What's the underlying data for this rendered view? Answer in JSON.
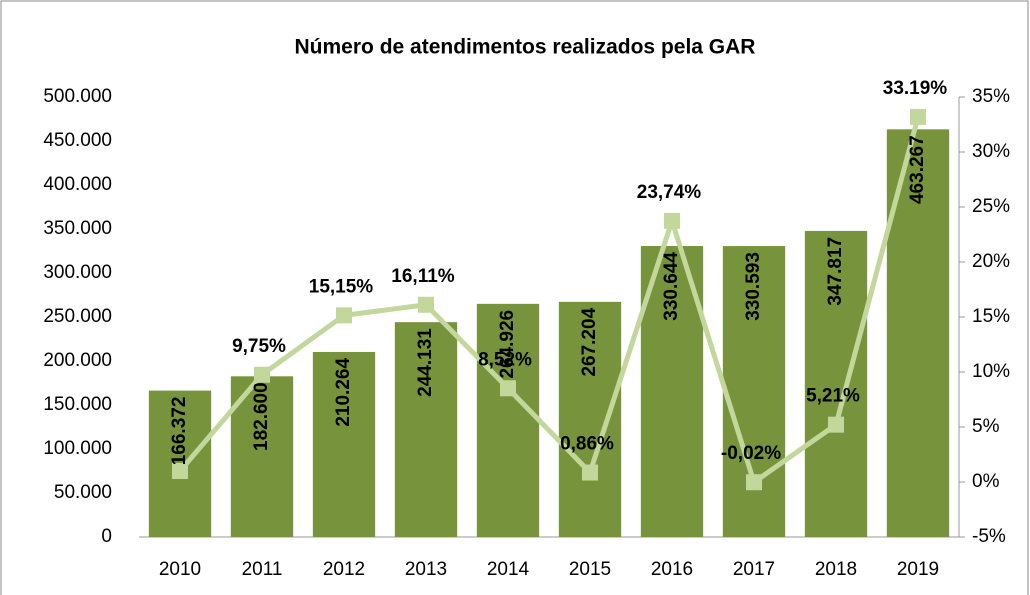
{
  "chart_data": {
    "type": "bar",
    "title": "Número de atendimentos realizados pela GAR",
    "categories": [
      "2010",
      "2011",
      "2012",
      "2013",
      "2014",
      "2015",
      "2016",
      "2017",
      "2018",
      "2019"
    ],
    "series": [
      {
        "type": "bar",
        "color": "#77933c",
        "values": [
          166372,
          182600,
          210264,
          244131,
          264926,
          267204,
          330644,
          330593,
          347817,
          463267
        ],
        "value_labels": [
          "166.372",
          "182.600",
          "210.264",
          "244.131",
          "264.926",
          "267.204",
          "330.644",
          "330.593",
          "347.817",
          "463.267"
        ]
      },
      {
        "type": "line",
        "axis": "y2",
        "color": "#c3d69b",
        "values": [
          1,
          9.75,
          15.15,
          16.11,
          8.52,
          0.86,
          23.74,
          -0.02,
          5.21,
          33.19
        ],
        "value_labels": [
          null,
          "9,75%",
          "15,15%",
          "16,11%",
          "8,52%",
          "0,86%",
          "23,74%",
          "-0,02%",
          "5,21%",
          "33.19%"
        ]
      }
    ],
    "ylim": [
      0,
      500000
    ],
    "yticks": [
      0,
      {
        "value": 50000,
        "label": "50.000"
      },
      {
        "value": 100000,
        "label": "100.000"
      },
      {
        "value": 150000,
        "label": "150.000"
      },
      {
        "value": 200000,
        "label": "200.000"
      },
      {
        "value": 250000,
        "label": "250.000"
      },
      {
        "value": 300000,
        "label": "300.000"
      },
      {
        "value": 350000,
        "label": "350.000"
      },
      {
        "value": 400000,
        "label": "400.000"
      },
      {
        "value": 450000,
        "label": "450.000"
      },
      {
        "value": 500000,
        "label": "500.000"
      }
    ],
    "y2lim": [
      -5,
      35
    ],
    "y2ticks": [
      {
        "value": -5,
        "label": "-5%"
      },
      {
        "value": 0,
        "label": "0%"
      },
      {
        "value": 5,
        "label": "5%"
      },
      {
        "value": 10,
        "label": "10%"
      },
      {
        "value": 15,
        "label": "15%"
      },
      {
        "value": 20,
        "label": "20%"
      },
      {
        "value": 25,
        "label": "25%"
      },
      {
        "value": 30,
        "label": "30%"
      },
      {
        "value": 35,
        "label": "35%"
      }
    ],
    "grid": false
  }
}
